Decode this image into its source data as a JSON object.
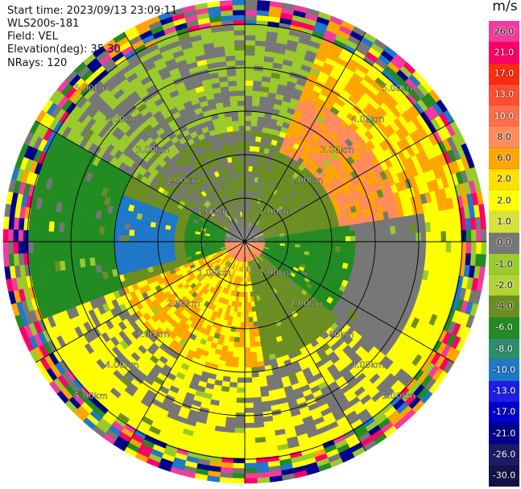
{
  "metadata": {
    "start_time": "Start time: 2023/09/13 23:09:11",
    "site": "WLS200s-181",
    "field": "Field: VEL",
    "elevation": "Elevation(deg): 35.30",
    "nrays": "NRays: 120"
  },
  "colorbar": {
    "unit": "m/s",
    "levels": [
      {
        "label": "26.0",
        "color": "#f23b9e",
        "dark": false
      },
      {
        "label": "21.0",
        "color": "#ff0068",
        "dark": true
      },
      {
        "label": "17.0",
        "color": "#ff2a12",
        "dark": true
      },
      {
        "label": "13.0",
        "color": "#ff4f31",
        "dark": true
      },
      {
        "label": "10.0",
        "color": "#ff6f4c",
        "dark": true
      },
      {
        "label": "8.0",
        "color": "#ff8c5a",
        "dark": false
      },
      {
        "label": "6.0",
        "color": "#ffa500",
        "dark": false
      },
      {
        "label": "2.0",
        "color": "#ffde00",
        "dark": false
      },
      {
        "label": "2.0",
        "color": "#ffff00",
        "dark": false
      },
      {
        "label": "1.0",
        "color": "#d6e23a",
        "dark": false
      },
      {
        "label": "0.0",
        "color": "#777777",
        "dark": false
      },
      {
        "label": "-1.0",
        "color": "#9aca2c",
        "dark": false
      },
      {
        "label": "-2.0",
        "color": "#b2d334",
        "dark": false
      },
      {
        "label": "-4.0",
        "color": "#6b8e23",
        "dark": false
      },
      {
        "label": "-6.0",
        "color": "#228b22",
        "dark": true
      },
      {
        "label": "-8.0",
        "color": "#2d8d6e",
        "dark": true
      },
      {
        "label": "-10.0",
        "color": "#1f78c8",
        "dark": true
      },
      {
        "label": "-13.0",
        "color": "#1e1ee6",
        "dark": true
      },
      {
        "label": "-17.0",
        "color": "#0000cd",
        "dark": true
      },
      {
        "label": "-21.0",
        "color": "#00008b",
        "dark": true
      },
      {
        "label": "-26.0",
        "color": "#1b1b6a",
        "dark": true
      },
      {
        "label": "-30.0",
        "color": "#131347",
        "dark": true
      }
    ]
  },
  "ppi": {
    "range_max_km": 5.0,
    "rings_km": [
      1,
      2,
      3,
      4,
      5
    ],
    "spoke_step_deg": 30,
    "range_labels": [
      "1.00km",
      "2.00km",
      "3.00km",
      "4.00km",
      "5.00km"
    ],
    "palette": {
      "yellow": "#ffff00",
      "orange": "#ffa500",
      "salmon": "#ff8c5a",
      "light_green": "#9aca2c",
      "olive": "#6b8e23",
      "green": "#228b22",
      "gray": "#777777",
      "blue": "#1f78c8",
      "magenta": "#f23b9e",
      "red": "#ff0068",
      "navy": "#00008b"
    }
  }
}
